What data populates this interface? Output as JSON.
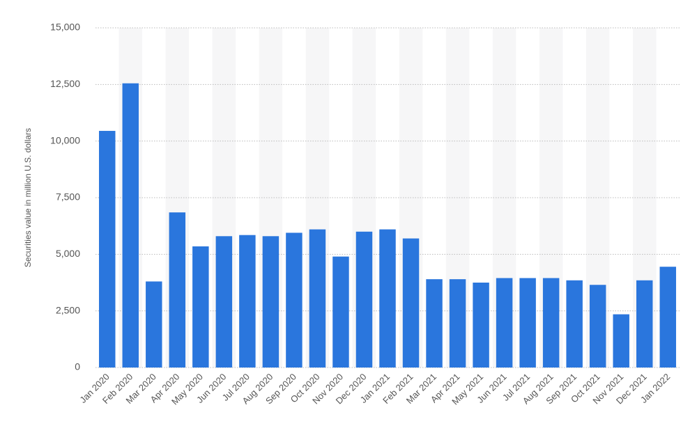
{
  "chart_data": {
    "type": "bar",
    "y_label": "Securities value in million U.S. dollars",
    "categories": [
      "Jan 2020",
      "Feb 2020",
      "Mar 2020",
      "Apr 2020",
      "May 2020",
      "Jun 2020",
      "Jul 2020",
      "Aug 2020",
      "Sep 2020",
      "Oct 2020",
      "Nov 2020",
      "Dec 2020",
      "Jan 2021",
      "Feb 2021",
      "Mar 2021",
      "Apr 2021",
      "May 2021",
      "Jun 2021",
      "Jul 2021",
      "Aug 2021",
      "Sep 2021",
      "Oct 2021",
      "Nov 2021",
      "Dec 2021",
      "Jan 2022"
    ],
    "values": [
      10450,
      12550,
      3800,
      6850,
      5350,
      5800,
      5850,
      5800,
      5950,
      6100,
      4900,
      6000,
      6100,
      5700,
      3900,
      3900,
      3750,
      3950,
      3950,
      3950,
      3850,
      3650,
      2350,
      3850,
      4450
    ],
    "color": "#2a76dd",
    "ylim": [
      0,
      15000
    ],
    "yticks": [
      0,
      {
        "value": 2500,
        "label": "2,500"
      },
      {
        "value": 5000,
        "label": "5,000"
      },
      {
        "value": 7500,
        "label": "7,500"
      },
      {
        "value": 10000,
        "label": "10,000"
      },
      {
        "value": 12500,
        "label": "12,500"
      },
      {
        "value": 15000,
        "label": "15,000"
      }
    ],
    "grid": true
  }
}
